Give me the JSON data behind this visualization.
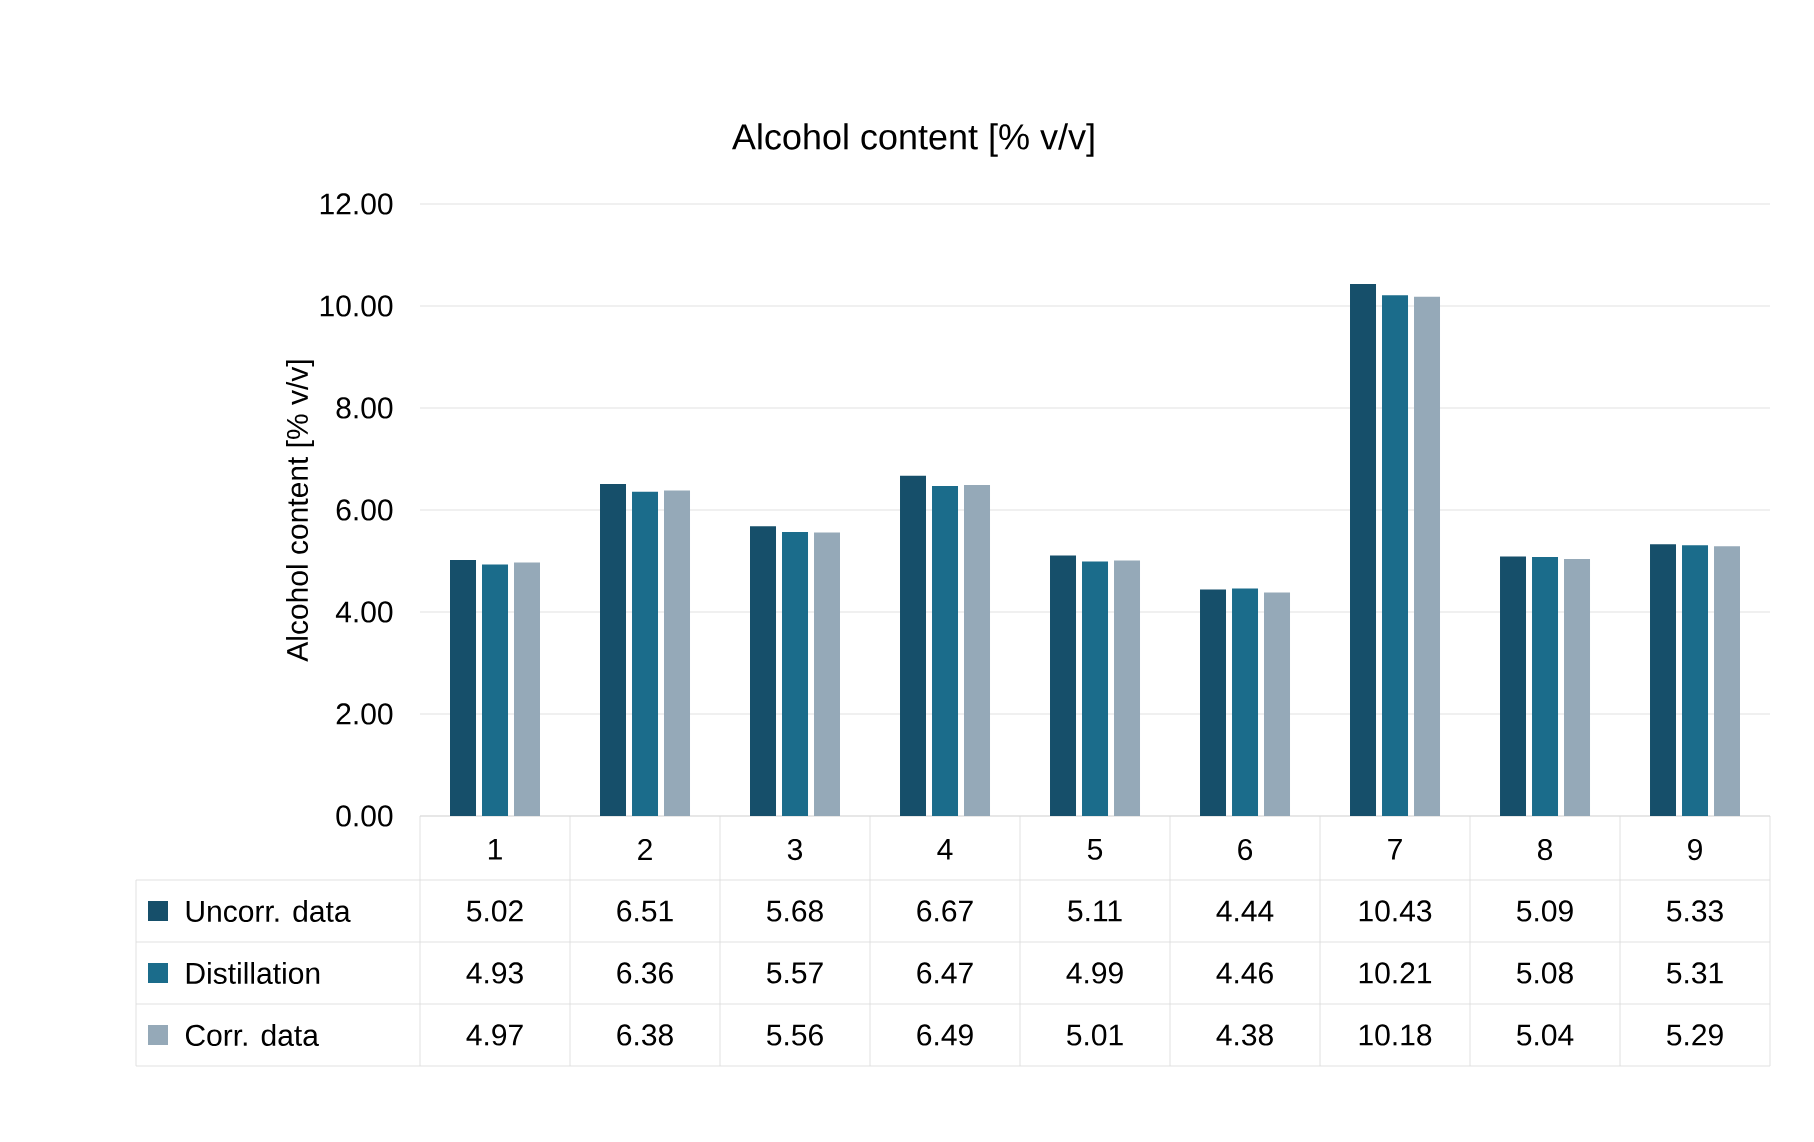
{
  "chart_data": {
    "type": "bar",
    "title": "Alcohol content [% v/v]",
    "ylabel": "Alcohol content [% v/v]",
    "categories": [
      "1",
      "2",
      "3",
      "4",
      "5",
      "6",
      "7",
      "8",
      "9"
    ],
    "series": [
      {
        "name": "Uncorr. data",
        "color": "#164f6a",
        "values": [
          5.02,
          6.51,
          5.68,
          6.67,
          5.11,
          4.44,
          10.43,
          5.09,
          5.33
        ]
      },
      {
        "name": "Distillation",
        "color": "#1b6c8b",
        "values": [
          4.93,
          6.36,
          5.57,
          6.47,
          4.99,
          4.46,
          10.21,
          5.08,
          5.31
        ]
      },
      {
        "name": "Corr. data",
        "color": "#95a9b8",
        "values": [
          4.97,
          6.38,
          5.56,
          6.49,
          5.01,
          4.38,
          10.18,
          5.04,
          5.29
        ]
      }
    ],
    "ylim": [
      0,
      12
    ],
    "yticks": [
      {
        "value": 0,
        "label": "0.00"
      },
      {
        "value": 2,
        "label": "2.00"
      },
      {
        "value": 4,
        "label": "4.00"
      },
      {
        "value": 6,
        "label": "6.00"
      },
      {
        "value": 8,
        "label": "8.00"
      },
      {
        "value": 10,
        "label": "10.00"
      },
      {
        "value": 12,
        "label": "12.00"
      }
    ],
    "grid": "y",
    "legend": "bottom",
    "data_labels": true
  }
}
